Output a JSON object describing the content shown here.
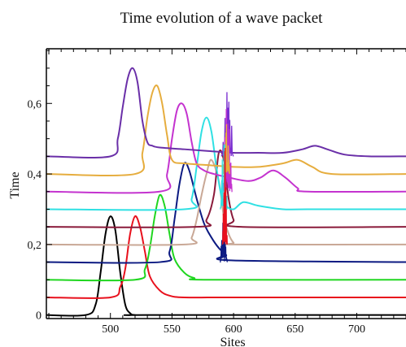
{
  "chart_data": {
    "type": "line",
    "title": "Time evolution of a wave packet",
    "xlabel": "Sites",
    "ylabel": "Time",
    "xlim": [
      448,
      740
    ],
    "ylim": [
      -0.01,
      0.755
    ],
    "x_ticks": [
      500,
      550,
      600,
      650,
      700
    ],
    "x_tick_labels": [
      "500",
      "550",
      "600",
      "650",
      "700"
    ],
    "y_ticks": [
      0,
      0.2,
      0.4,
      0.6
    ],
    "y_tick_labels": [
      "0",
      "0,2",
      "0,4",
      "0,6"
    ],
    "grid": false,
    "legend": "none",
    "series": [
      {
        "color": "#000000",
        "baseline": 0.0,
        "x": [
          448,
          480,
          488,
          492,
          496,
          500,
          504,
          508,
          512,
          516,
          520,
          530,
          740
        ],
        "y": [
          0.0,
          0.0,
          0.03,
          0.12,
          0.23,
          0.28,
          0.24,
          0.12,
          0.03,
          0.005,
          0.0,
          0.0,
          0.0
        ]
      },
      {
        "color": "#e8101c",
        "baseline": 0.05,
        "x": [
          448,
          500,
          508,
          512,
          516,
          520,
          524,
          528,
          532,
          540,
          548,
          560,
          600,
          740
        ],
        "y": [
          0.05,
          0.05,
          0.08,
          0.13,
          0.23,
          0.28,
          0.25,
          0.18,
          0.11,
          0.07,
          0.055,
          0.05,
          0.05,
          0.05
        ]
      },
      {
        "color": "#1fd61f",
        "baseline": 0.1,
        "x": [
          448,
          520,
          528,
          532,
          536,
          540,
          544,
          548,
          552,
          560,
          568,
          580,
          740
        ],
        "y": [
          0.1,
          0.1,
          0.13,
          0.19,
          0.28,
          0.34,
          0.31,
          0.23,
          0.16,
          0.12,
          0.105,
          0.1,
          0.1
        ]
      },
      {
        "color": "#0c1a82",
        "baseline": 0.15,
        "x": [
          448,
          540,
          548,
          552,
          556,
          560,
          564,
          570,
          576,
          582,
          588,
          594,
          598,
          740
        ],
        "y": [
          0.15,
          0.15,
          0.18,
          0.27,
          0.37,
          0.43,
          0.41,
          0.33,
          0.26,
          0.22,
          0.19,
          0.17,
          0.155,
          0.15
        ]
      },
      {
        "color": "#c9a896",
        "baseline": 0.2,
        "x": [
          448,
          560,
          566,
          570,
          574,
          578,
          582,
          588,
          592,
          596,
          600,
          604,
          740
        ],
        "y": [
          0.2,
          0.2,
          0.22,
          0.27,
          0.34,
          0.4,
          0.44,
          0.38,
          0.28,
          0.23,
          0.205,
          0.2,
          0.2
        ]
      },
      {
        "color": "#8a1a3a",
        "baseline": 0.25,
        "x": [
          448,
          570,
          578,
          584,
          588,
          592,
          596,
          600,
          606,
          740
        ],
        "y": [
          0.25,
          0.25,
          0.27,
          0.34,
          0.46,
          0.44,
          0.33,
          0.27,
          0.25,
          0.25
        ]
      },
      {
        "color": "#2fe0e3",
        "baseline": 0.3,
        "x": [
          448,
          560,
          566,
          570,
          574,
          578,
          582,
          586,
          590,
          594,
          600,
          608,
          620,
          640,
          660,
          740
        ],
        "y": [
          0.3,
          0.3,
          0.33,
          0.42,
          0.52,
          0.56,
          0.52,
          0.42,
          0.34,
          0.31,
          0.3,
          0.32,
          0.31,
          0.3,
          0.3,
          0.3
        ]
      },
      {
        "color": "#c433cf",
        "baseline": 0.35,
        "x": [
          448,
          540,
          546,
          550,
          554,
          558,
          562,
          566,
          570,
          576,
          584,
          596,
          612,
          622,
          632,
          642,
          652,
          660,
          740
        ],
        "y": [
          0.35,
          0.35,
          0.4,
          0.5,
          0.58,
          0.6,
          0.57,
          0.49,
          0.43,
          0.41,
          0.4,
          0.39,
          0.38,
          0.39,
          0.41,
          0.39,
          0.36,
          0.35,
          0.35
        ]
      },
      {
        "color": "#e6ad3e",
        "baseline": 0.4,
        "x": [
          448,
          520,
          526,
          530,
          534,
          538,
          542,
          546,
          550,
          560,
          580,
          600,
          620,
          640,
          652,
          664,
          680,
          740
        ],
        "y": [
          0.4,
          0.4,
          0.46,
          0.56,
          0.63,
          0.65,
          0.6,
          0.51,
          0.44,
          0.43,
          0.425,
          0.42,
          0.42,
          0.43,
          0.44,
          0.42,
          0.4,
          0.4
        ]
      },
      {
        "color": "#6a2fa8",
        "baseline": 0.45,
        "x": [
          448,
          500,
          506,
          510,
          514,
          518,
          522,
          526,
          530,
          534,
          540,
          560,
          580,
          600,
          620,
          640,
          656,
          666,
          676,
          690,
          710,
          740
        ],
        "y": [
          0.45,
          0.45,
          0.5,
          0.59,
          0.67,
          0.7,
          0.66,
          0.55,
          0.49,
          0.48,
          0.475,
          0.47,
          0.465,
          0.46,
          0.46,
          0.46,
          0.47,
          0.48,
          0.47,
          0.455,
          0.45,
          0.45
        ]
      }
    ],
    "spikes": [
      {
        "color": "#7a2fd0",
        "center": 595,
        "halfwidth": 5,
        "ymin": 0.45,
        "ymax": 0.75
      },
      {
        "color": "#c433cf",
        "center": 595,
        "halfwidth": 4,
        "ymin": 0.35,
        "ymax": 0.7
      },
      {
        "color": "#e6ad3e",
        "center": 594,
        "halfwidth": 3,
        "ymin": 0.4,
        "ymax": 0.62
      },
      {
        "color": "#2fe0e3",
        "center": 592,
        "halfwidth": 3,
        "ymin": 0.3,
        "ymax": 0.55
      },
      {
        "color": "#0c1a82",
        "center": 592,
        "halfwidth": 3,
        "ymin": 0.15,
        "ymax": 0.38
      },
      {
        "color": "#e8101c",
        "center": 593,
        "halfwidth": 2,
        "ymin": 0.2,
        "ymax": 0.5
      }
    ]
  }
}
